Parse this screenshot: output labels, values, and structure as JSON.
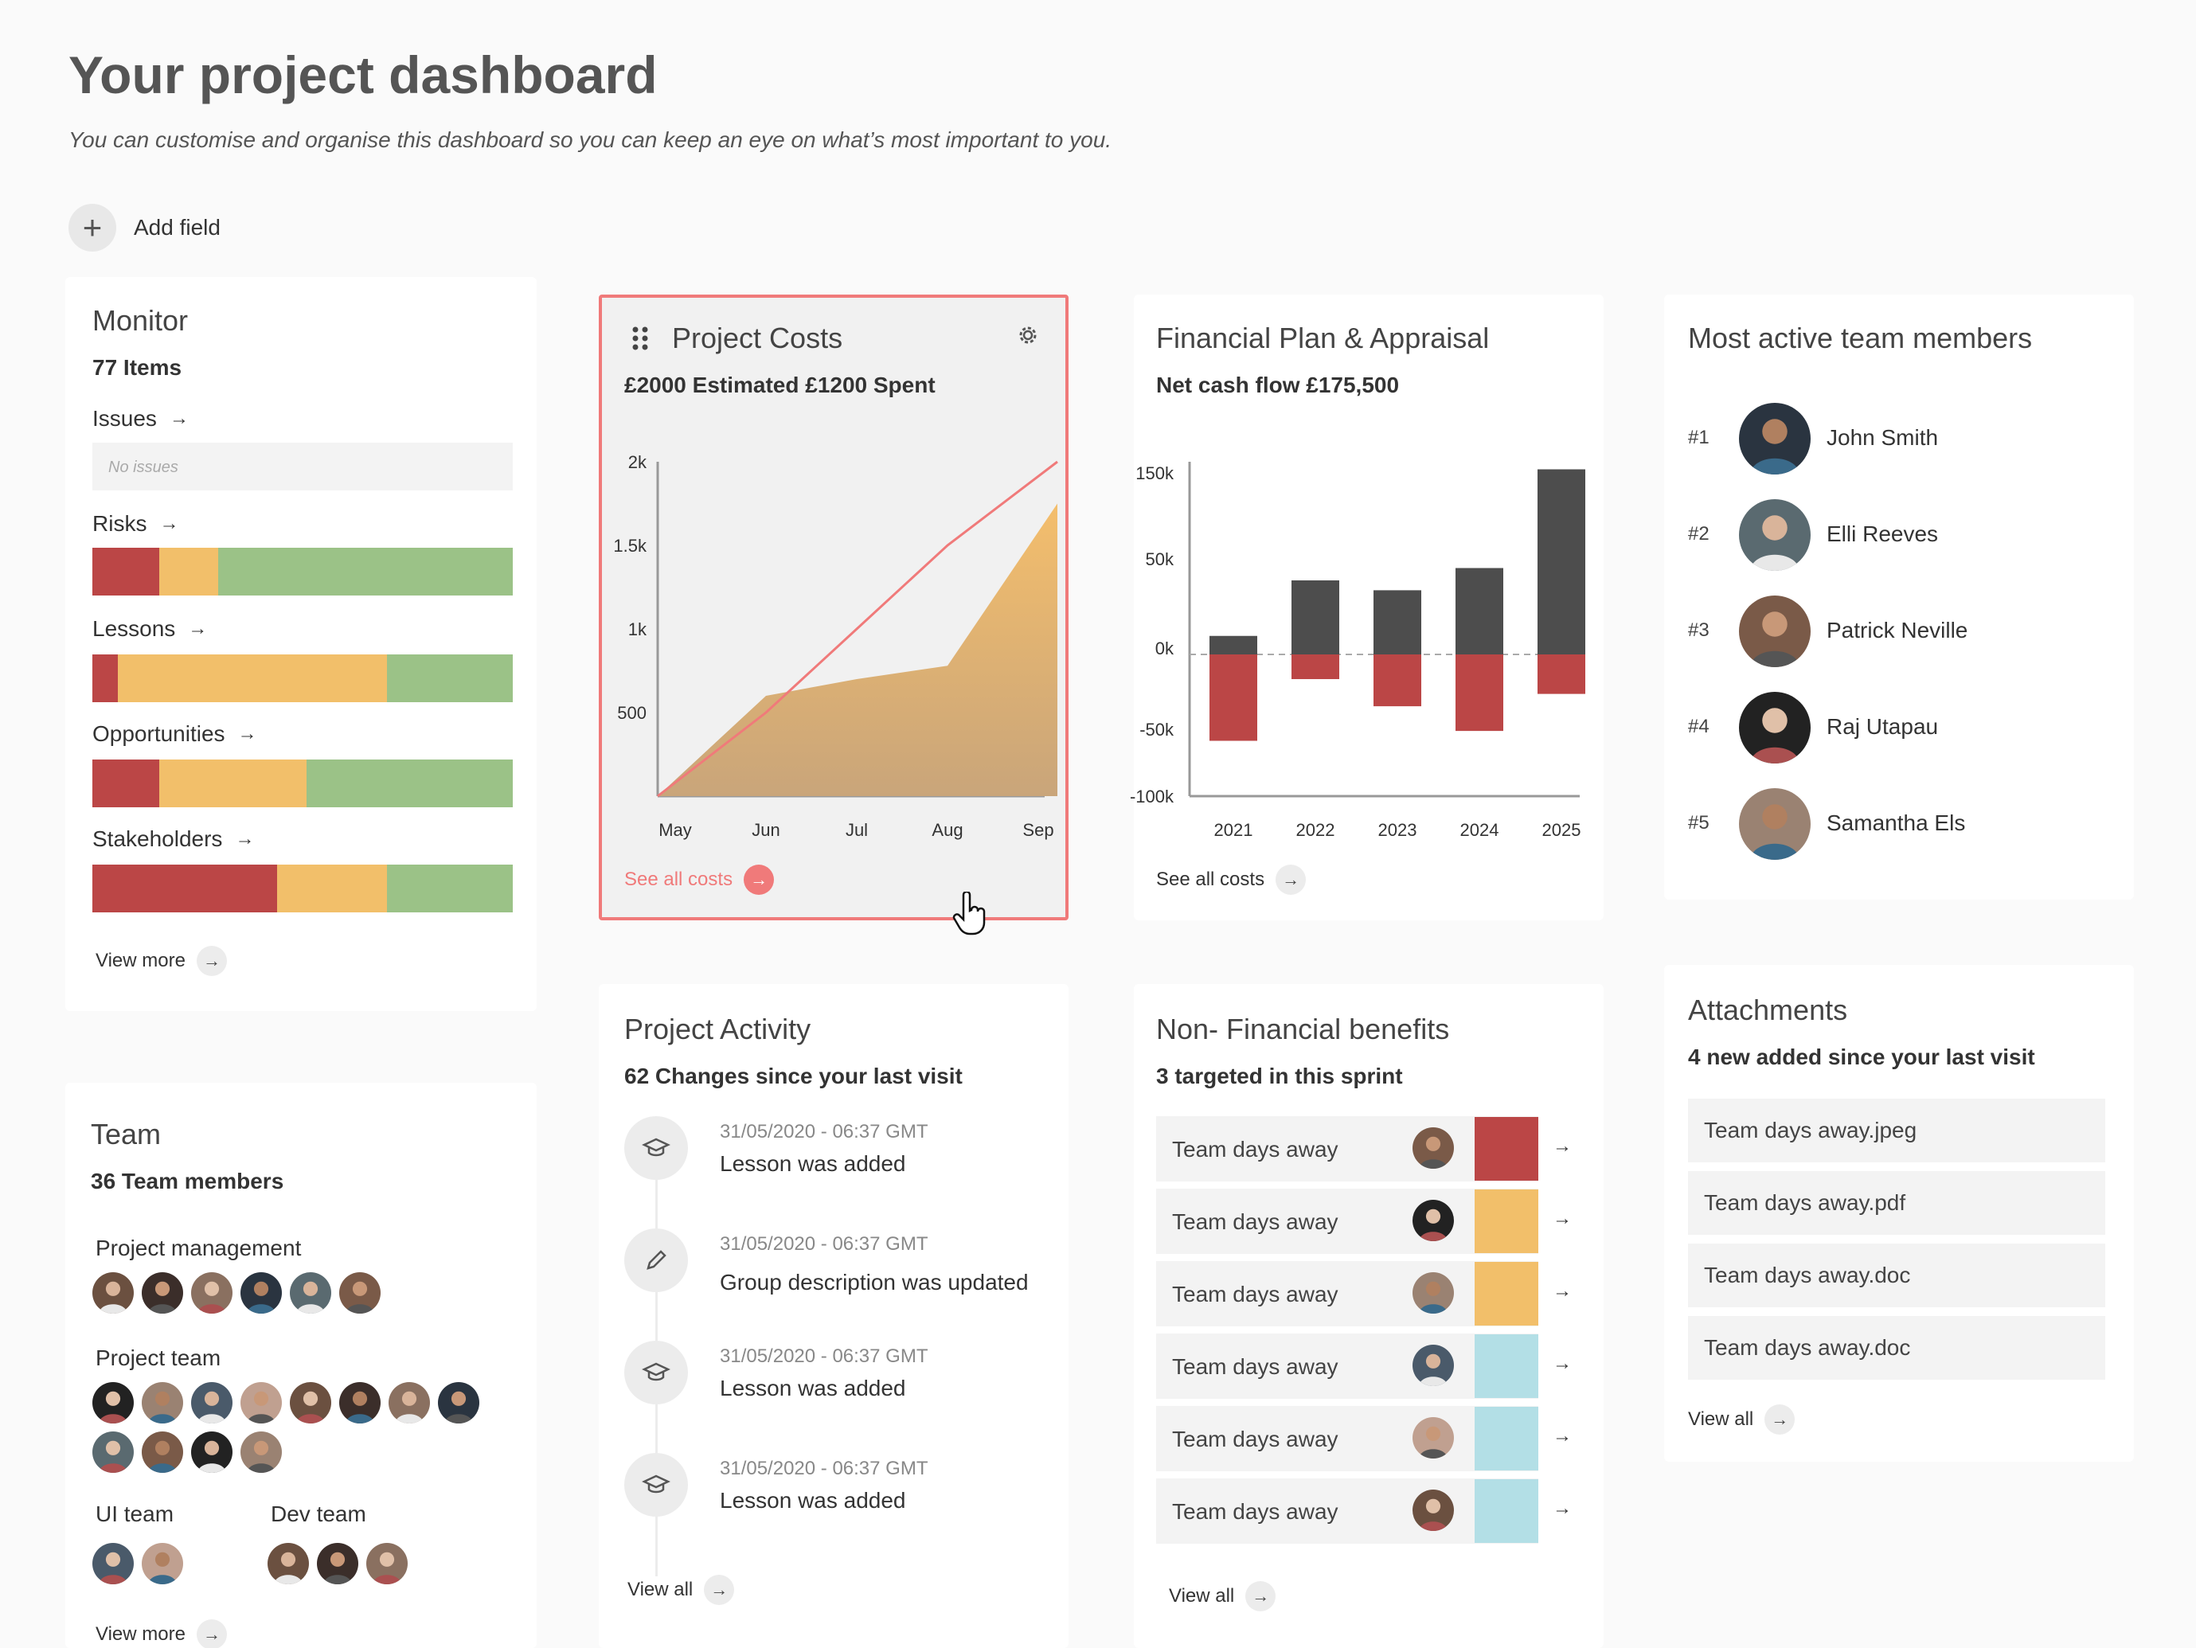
{
  "header": {
    "title": "Your project dashboard",
    "subtitle": "You can customise and organise this dashboard so you can keep an eye on what’s most important to you.",
    "add_field_label": "Add field"
  },
  "monitor": {
    "title": "Monitor",
    "items_count": "77 Items",
    "issues_label": "Issues",
    "no_issues_text": "No issues",
    "risks_label": "Risks",
    "lessons_label": "Lessons",
    "opportunities_label": "Opportunities",
    "stakeholders_label": "Stakeholders",
    "view_more_label": "View more",
    "bars": {
      "risks": [
        0.16,
        0.14,
        0.7
      ],
      "lessons": [
        0.06,
        0.64,
        0.3
      ],
      "opportunities": [
        0.16,
        0.35,
        0.49
      ],
      "stakeholders": [
        0.44,
        0.26,
        0.3
      ]
    }
  },
  "project_costs": {
    "title": "Project Costs",
    "summary": "£2000 Estimated £1200 Spent",
    "see_all_label": "See all costs",
    "chart_data": {
      "type": "area",
      "categories": [
        "May",
        "Jun",
        "Jul",
        "Aug",
        "Sep"
      ],
      "y_ticks": [
        "2k",
        "1.5k",
        "1k",
        "500"
      ],
      "ylim": [
        0,
        2000
      ],
      "series": [
        {
          "values": [
            0,
            600,
            700,
            780,
            1750
          ]
        },
        {
          "values": [
            0,
            500,
            1000,
            1500,
            2000
          ]
        }
      ]
    }
  },
  "financial_plan": {
    "title": "Financial Plan & Appraisal",
    "summary": "Net cash flow £175,500",
    "see_all_label": "See all costs",
    "chart_data": {
      "type": "bar",
      "categories": [
        "2021",
        "2022",
        "2023",
        "2024",
        "2025"
      ],
      "y_ticks": [
        "150k",
        "50k",
        "0k",
        "-50k",
        "-100k"
      ],
      "positive": [
        15,
        60,
        52,
        70,
        150
      ],
      "negative": [
        -70,
        -20,
        -42,
        -62,
        -32
      ]
    }
  },
  "team_members": {
    "title": "Most active team members",
    "members": [
      {
        "rank": "#1",
        "name": "John Smith"
      },
      {
        "rank": "#2",
        "name": "Elli Reeves"
      },
      {
        "rank": "#3",
        "name": "Patrick Neville"
      },
      {
        "rank": "#4",
        "name": "Raj Utapau"
      },
      {
        "rank": "#5",
        "name": "Samantha Els"
      }
    ]
  },
  "team": {
    "title": "Team",
    "count": "36 Team members",
    "groups": {
      "project_management": "Project management",
      "project_team": "Project team",
      "ui_team": "UI team",
      "dev_team": "Dev team"
    },
    "view_more_label": "View more"
  },
  "activity": {
    "title": "Project Activity",
    "summary": "62 Changes since your last visit",
    "items": [
      {
        "time": "31/05/2020 - 06:37 GMT",
        "text": "Lesson was added",
        "icon": "graduation-cap-icon"
      },
      {
        "time": "31/05/2020 - 06:37 GMT",
        "text": "Group description was updated",
        "icon": "pencil-icon"
      },
      {
        "time": "31/05/2020 - 06:37 GMT",
        "text": "Lesson was added",
        "icon": "graduation-cap-icon"
      },
      {
        "time": "31/05/2020 - 06:37 GMT",
        "text": "Lesson was added",
        "icon": "graduation-cap-icon"
      }
    ],
    "view_all_label": "View all"
  },
  "non_financial": {
    "title": "Non- Financial benefits",
    "summary": "3 targeted in this sprint",
    "rows": [
      {
        "label": "Team days away",
        "status": "red"
      },
      {
        "label": "Team days away",
        "status": "amber"
      },
      {
        "label": "Team days away",
        "status": "amber"
      },
      {
        "label": "Team days away",
        "status": "blue"
      },
      {
        "label": "Team days away",
        "status": "blue"
      },
      {
        "label": "Team days away",
        "status": "blue"
      }
    ],
    "view_all_label": "View all"
  },
  "attachments": {
    "title": "Attachments",
    "summary": "4 new added since your last visit",
    "files": [
      "Team days away.jpeg",
      "Team days away.pdf",
      "Team days away.doc",
      "Team days away.doc"
    ],
    "view_all_label": "View all"
  },
  "colors": {
    "red": "#bb4646",
    "amber": "#f2bf6a",
    "green": "#9bc287",
    "blue": "#b3dfe6",
    "accent": "#f07a7a",
    "dark_bar": "#4d4d4d"
  }
}
